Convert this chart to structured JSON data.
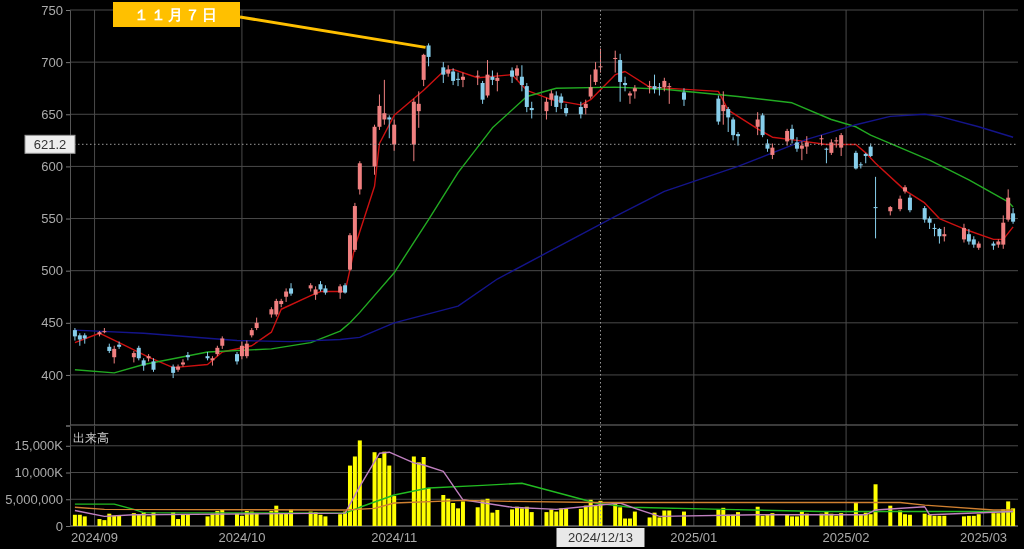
{
  "chart_data": [
    {
      "type": "candlestick",
      "x": [
        "2024-08-28",
        "2024-08-29",
        "2024-08-30",
        "2024-09-02",
        "2024-09-03",
        "2024-09-04",
        "2024-09-05",
        "2024-09-06",
        "2024-09-09",
        "2024-09-10",
        "2024-09-11",
        "2024-09-12",
        "2024-09-13",
        "2024-09-17",
        "2024-09-18",
        "2024-09-19",
        "2024-09-20",
        "2024-09-24",
        "2024-09-25",
        "2024-09-26",
        "2024-09-27",
        "2024-09-30",
        "2024-10-01",
        "2024-10-02",
        "2024-10-03",
        "2024-10-04",
        "2024-10-07",
        "2024-10-08",
        "2024-10-09",
        "2024-10-10",
        "2024-10-11",
        "2024-10-15",
        "2024-10-16",
        "2024-10-17",
        "2024-10-18",
        "2024-10-21",
        "2024-10-22",
        "2024-10-23",
        "2024-10-24",
        "2024-10-25",
        "2024-10-28",
        "2024-10-29",
        "2024-10-30",
        "2024-10-31",
        "2024-11-01",
        "2024-11-05",
        "2024-11-06",
        "2024-11-07",
        "2024-11-08",
        "2024-11-11",
        "2024-11-12",
        "2024-11-13",
        "2024-11-14",
        "2024-11-15",
        "2024-11-18",
        "2024-11-19",
        "2024-11-20",
        "2024-11-21",
        "2024-11-22",
        "2024-11-25",
        "2024-11-26",
        "2024-11-27",
        "2024-11-28",
        "2024-11-29",
        "2024-12-02",
        "2024-12-03",
        "2024-12-04",
        "2024-12-05",
        "2024-12-06",
        "2024-12-09",
        "2024-12-10",
        "2024-12-11",
        "2024-12-12",
        "2024-12-13",
        "2024-12-16",
        "2024-12-17",
        "2024-12-18",
        "2024-12-19",
        "2024-12-20",
        "2024-12-23",
        "2024-12-24",
        "2024-12-25",
        "2024-12-26",
        "2024-12-27",
        "2024-12-30",
        "2025-01-06",
        "2025-01-07",
        "2025-01-08",
        "2025-01-09",
        "2025-01-10",
        "2025-01-14",
        "2025-01-15",
        "2025-01-16",
        "2025-01-17",
        "2025-01-20",
        "2025-01-21",
        "2025-01-22",
        "2025-01-23",
        "2025-01-24",
        "2025-01-27",
        "2025-01-28",
        "2025-01-29",
        "2025-01-30",
        "2025-01-31",
        "2025-02-03",
        "2025-02-04",
        "2025-02-05",
        "2025-02-06",
        "2025-02-07",
        "2025-02-10",
        "2025-02-12",
        "2025-02-13",
        "2025-02-14",
        "2025-02-17",
        "2025-02-18",
        "2025-02-19",
        "2025-02-20",
        "2025-02-21",
        "2025-02-25",
        "2025-02-26",
        "2025-02-27",
        "2025-02-28",
        "2025-03-03",
        "2025-03-04",
        "2025-03-05",
        "2025-03-06",
        "2025-03-07"
      ],
      "ohlc": [
        [
          443,
          445,
          433,
          437
        ],
        [
          438,
          440,
          428,
          434
        ],
        [
          438,
          440,
          430,
          435
        ],
        [
          439,
          442,
          437,
          441
        ],
        [
          441,
          445,
          440,
          442
        ],
        [
          427,
          430,
          421,
          423
        ],
        [
          417,
          428,
          411,
          425
        ],
        [
          429,
          432,
          425,
          427
        ],
        [
          417,
          423,
          412,
          421
        ],
        [
          426,
          428,
          414,
          416
        ],
        [
          414,
          416,
          404,
          409
        ],
        [
          416,
          420,
          413,
          418
        ],
        [
          413,
          416,
          403,
          405
        ],
        [
          408,
          410,
          397,
          402
        ],
        [
          405,
          410,
          403,
          408
        ],
        [
          410,
          415,
          408,
          412
        ],
        [
          419,
          422,
          414,
          417
        ],
        [
          418,
          422,
          414,
          416
        ],
        [
          414,
          418,
          409,
          416
        ],
        [
          420,
          428,
          418,
          426
        ],
        [
          428,
          437,
          425,
          435
        ],
        [
          420,
          422,
          410,
          413
        ],
        [
          418,
          432,
          415,
          428
        ],
        [
          418,
          433,
          416,
          430
        ],
        [
          438,
          445,
          436,
          443
        ],
        [
          445,
          455,
          443,
          450
        ],
        [
          458,
          465,
          455,
          463
        ],
        [
          458,
          473,
          456,
          471
        ],
        [
          468,
          473,
          465,
          471
        ],
        [
          475,
          483,
          470,
          480
        ],
        [
          483,
          488,
          476,
          478
        ],
        [
          483,
          488,
          480,
          486
        ],
        [
          477,
          485,
          472,
          482
        ],
        [
          487,
          490,
          480,
          482
        ],
        [
          483,
          486,
          477,
          479
        ],
        [
          479,
          487,
          473,
          485
        ],
        [
          486,
          488,
          478,
          479
        ],
        [
          501,
          536,
          500,
          534
        ],
        [
          520,
          565,
          518,
          562
        ],
        [
          578,
          605,
          573,
          603
        ],
        [
          600,
          640,
          592,
          638
        ],
        [
          638,
          669,
          635,
          658
        ],
        [
          645,
          683,
          640,
          651
        ],
        [
          647,
          649,
          627,
          645
        ],
        [
          621,
          645,
          615,
          640
        ],
        [
          621,
          665,
          605,
          662
        ],
        [
          653,
          672,
          637,
          660
        ],
        [
          683,
          708,
          677,
          707
        ],
        [
          716,
          718,
          696,
          705
        ],
        [
          695,
          700,
          680,
          688
        ],
        [
          689,
          697,
          686,
          693
        ],
        [
          691,
          694,
          678,
          682
        ],
        [
          684,
          690,
          677,
          683
        ],
        [
          683,
          690,
          676,
          686
        ],
        [
          686,
          692,
          678,
          687
        ],
        [
          680,
          682,
          660,
          664
        ],
        [
          668,
          702,
          666,
          688
        ],
        [
          686,
          692,
          678,
          683
        ],
        [
          682,
          690,
          672,
          685
        ],
        [
          692,
          695,
          680,
          686
        ],
        [
          687,
          697,
          683,
          694
        ],
        [
          686,
          697,
          672,
          678
        ],
        [
          677,
          680,
          652,
          657
        ],
        [
          656,
          662,
          646,
          654
        ],
        [
          653,
          666,
          645,
          662
        ],
        [
          664,
          673,
          658,
          670
        ],
        [
          668,
          672,
          652,
          657
        ],
        [
          667,
          670,
          655,
          661
        ],
        [
          656,
          660,
          648,
          651
        ],
        [
          657,
          662,
          646,
          650
        ],
        [
          656,
          664,
          650,
          660
        ],
        [
          667,
          688,
          665,
          676
        ],
        [
          681,
          700,
          678,
          693
        ],
        [
          695,
          713,
          690,
          696
        ],
        [
          703,
          711,
          690,
          704
        ],
        [
          702,
          708,
          662,
          681
        ],
        [
          680,
          686,
          672,
          678
        ],
        [
          668,
          672,
          660,
          670
        ],
        [
          672,
          678,
          665,
          675
        ],
        [
          676,
          682,
          670,
          677
        ],
        [
          677,
          688,
          670,
          674
        ],
        [
          676,
          680,
          668,
          675
        ],
        [
          676,
          685,
          672,
          682
        ],
        [
          676,
          680,
          660,
          677
        ],
        [
          671,
          675,
          658,
          664
        ],
        [
          665,
          668,
          640,
          643
        ],
        [
          653,
          672,
          640,
          659
        ],
        [
          655,
          657,
          633,
          647
        ],
        [
          645,
          647,
          625,
          630
        ],
        [
          631,
          633,
          620,
          629
        ],
        [
          638,
          652,
          630,
          645
        ],
        [
          649,
          651,
          628,
          630
        ],
        [
          622,
          626,
          614,
          617
        ],
        [
          611,
          622,
          607,
          618
        ],
        [
          624,
          636,
          620,
          634
        ],
        [
          636,
          640,
          622,
          626
        ],
        [
          623,
          628,
          614,
          617
        ],
        [
          617,
          624,
          606,
          620
        ],
        [
          619,
          629,
          612,
          623
        ],
        [
          626,
          630,
          620,
          627
        ],
        [
          617,
          618,
          603,
          616
        ],
        [
          613,
          626,
          611,
          623
        ],
        [
          624,
          628,
          618,
          625
        ],
        [
          618,
          632,
          610,
          630
        ],
        [
          613,
          615,
          597,
          598
        ],
        [
          602,
          604,
          598,
          601
        ],
        [
          612,
          613,
          603,
          610
        ],
        [
          619,
          622,
          609,
          610
        ],
        [
          561,
          590,
          531,
          560
        ],
        [
          557,
          562,
          553,
          561
        ],
        [
          559,
          572,
          557,
          569
        ],
        [
          576,
          582,
          574,
          580
        ],
        [
          570,
          573,
          556,
          558
        ],
        [
          560,
          562,
          546,
          549
        ],
        [
          550,
          552,
          540,
          546
        ],
        [
          541,
          545,
          533,
          540
        ],
        [
          540,
          541,
          526,
          533
        ],
        [
          533,
          542,
          528,
          535
        ],
        [
          530,
          545,
          527,
          541
        ],
        [
          535,
          540,
          525,
          528
        ],
        [
          530,
          533,
          522,
          525
        ],
        [
          522,
          528,
          520,
          526
        ],
        [
          526,
          528,
          520,
          524
        ],
        [
          525,
          530,
          522,
          528
        ],
        [
          525,
          553,
          521,
          546
        ],
        [
          549,
          578,
          547,
          570
        ],
        [
          555,
          560,
          545,
          547
        ]
      ],
      "colors": [
        "#87ceeb",
        "#87ceeb",
        "#87ceeb",
        "#f08080",
        "#f08080",
        "#87ceeb",
        "#f08080",
        "#87ceeb",
        "#f08080",
        "#87ceeb",
        "#87ceeb",
        "#f08080",
        "#87ceeb",
        "#87ceeb",
        "#f08080",
        "#f08080",
        "#87ceeb",
        "#87ceeb",
        "#f08080",
        "#f08080",
        "#f08080",
        "#87ceeb",
        "#f08080",
        "#f08080",
        "#f08080",
        "#f08080",
        "#f08080",
        "#f08080",
        "#f08080",
        "#f08080",
        "#87ceeb",
        "#f08080",
        "#f08080",
        "#87ceeb",
        "#87ceeb",
        "#f08080",
        "#87ceeb",
        "#f08080",
        "#f08080",
        "#f08080",
        "#f08080",
        "#f08080",
        "#f08080",
        "#87ceeb",
        "#f08080",
        "#f08080",
        "#f08080",
        "#f08080",
        "#87ceeb",
        "#87ceeb",
        "#f08080",
        "#87ceeb",
        "#87ceeb",
        "#f08080",
        "#f08080",
        "#87ceeb",
        "#f08080",
        "#87ceeb",
        "#f08080",
        "#87ceeb",
        "#f08080",
        "#87ceeb",
        "#87ceeb",
        "#87ceeb",
        "#f08080",
        "#f08080",
        "#87ceeb",
        "#87ceeb",
        "#87ceeb",
        "#87ceeb",
        "#f08080",
        "#f08080",
        "#f08080",
        "#f08080",
        "#f08080",
        "#87ceeb",
        "#87ceeb",
        "#f08080",
        "#f08080",
        "#f08080",
        "#87ceeb",
        "#87ceeb",
        "#f08080",
        "#f08080",
        "#87ceeb",
        "#87ceeb",
        "#f08080",
        "#87ceeb",
        "#87ceeb",
        "#87ceeb",
        "#f08080",
        "#87ceeb",
        "#87ceeb",
        "#f08080",
        "#f08080",
        "#87ceeb",
        "#87ceeb",
        "#f08080",
        "#f08080",
        "#f08080",
        "#87ceeb",
        "#f08080",
        "#f08080",
        "#f08080",
        "#87ceeb",
        "#87ceeb",
        "#87ceeb",
        "#87ceeb",
        "#87ceeb",
        "#f08080",
        "#f08080",
        "#f08080",
        "#87ceeb",
        "#87ceeb",
        "#87ceeb",
        "#87ceeb",
        "#87ceeb",
        "#f08080",
        "#f08080",
        "#87ceeb",
        "#87ceeb",
        "#f08080",
        "#87ceeb",
        "#f08080",
        "#f08080",
        "#f08080",
        "#87ceeb"
      ],
      "series": [
        {
          "type": "line",
          "color": "#cc1111",
          "x": [
            "2024-08-28",
            "2024-09-02",
            "2024-09-06",
            "2024-09-12",
            "2024-09-17",
            "2024-09-24",
            "2024-09-27",
            "2024-10-03",
            "2024-10-07",
            "2024-10-09",
            "2024-10-15",
            "2024-10-17",
            "2024-10-22",
            "2024-10-23",
            "2024-10-24",
            "2024-10-28",
            "2024-10-29",
            "2024-11-01",
            "2024-11-07",
            "2024-11-11",
            "2024-11-13",
            "2024-11-18",
            "2024-11-25",
            "2024-11-28",
            "2024-12-03",
            "2024-12-09",
            "2024-12-11",
            "2024-12-16",
            "2024-12-18",
            "2024-12-23",
            "2025-01-06",
            "2025-01-08",
            "2025-01-14",
            "2025-01-17",
            "2025-01-22",
            "2025-01-28",
            "2025-02-03",
            "2025-02-05",
            "2025-02-07",
            "2025-02-13",
            "2025-02-17",
            "2025-02-20",
            "2025-02-25",
            "2025-03-03",
            "2025-03-05",
            "2025-03-07"
          ],
          "values": [
            431,
            440,
            431,
            417,
            407,
            410,
            422,
            428,
            441,
            463,
            476,
            480,
            480,
            501,
            523,
            581,
            622,
            649,
            673,
            691,
            693,
            685,
            688,
            673,
            664,
            659,
            664,
            688,
            691,
            676,
            672,
            654,
            636,
            628,
            625,
            621,
            621,
            613,
            603,
            577,
            565,
            550,
            540,
            530,
            530,
            542
          ]
        },
        {
          "type": "line",
          "color": "#22aa22",
          "x": [
            "2024-08-28",
            "2024-09-05",
            "2024-09-11",
            "2024-09-24",
            "2024-10-07",
            "2024-10-15",
            "2024-10-21",
            "2024-10-23",
            "2024-10-25",
            "2024-11-01",
            "2024-11-08",
            "2024-11-14",
            "2024-11-21",
            "2024-11-28",
            "2024-12-04",
            "2024-12-16",
            "2024-12-26",
            "2025-01-10",
            "2025-01-21",
            "2025-01-29",
            "2025-02-03",
            "2025-02-06",
            "2025-02-18",
            "2025-02-26",
            "2025-03-06",
            "2025-03-07"
          ],
          "values": [
            405,
            402,
            410,
            422,
            425,
            431,
            442,
            450,
            460,
            498,
            549,
            594,
            637,
            667,
            675,
            676,
            674,
            667,
            661,
            645,
            638,
            630,
            606,
            587,
            566,
            561
          ]
        },
        {
          "type": "line",
          "color": "#14148a",
          "x": [
            "2024-08-28",
            "2024-09-11",
            "2024-09-30",
            "2024-10-11",
            "2024-10-21",
            "2024-10-25",
            "2024-11-01",
            "2024-11-14",
            "2024-11-22",
            "2024-12-02",
            "2024-12-16",
            "2024-12-26",
            "2025-01-10",
            "2025-01-24",
            "2025-02-03",
            "2025-02-10",
            "2025-02-17",
            "2025-02-20",
            "2025-02-28",
            "2025-03-07"
          ],
          "values": [
            443,
            440,
            433,
            432,
            434,
            436,
            450,
            466,
            492,
            517,
            552,
            576,
            600,
            626,
            640,
            648,
            650,
            648,
            638,
            628
          ]
        }
      ],
      "ylim": [
        352,
        750
      ],
      "yticks": [
        400,
        450,
        500,
        550,
        600,
        650,
        700,
        750
      ],
      "xlim": [
        "2024-08-27",
        "2025-03-08"
      ],
      "xticks": [
        {
          "value": "2024-09-01",
          "label": null
        },
        {
          "value": "2024-10-01",
          "label": null
        },
        {
          "value": "2024-11-01",
          "label": null
        },
        {
          "value": "2024-12-01",
          "label": null
        },
        {
          "value": "2025-01-01",
          "label": null
        },
        {
          "value": "2025-02-01",
          "label": null
        },
        {
          "value": "2025-03-01",
          "label": null
        }
      ],
      "tick_labels": "y",
      "grid": true,
      "ref_lines": [
        {
          "axis": "y",
          "value": 621.2,
          "label": "621.2",
          "line_style": "dotted"
        },
        {
          "axis": "x",
          "value": "2024-12-13",
          "line_style": "dotted"
        }
      ],
      "annotations": [
        "１１月７日"
      ]
    },
    {
      "type": "bar",
      "ylabel": "出来高",
      "color": "#ffff00",
      "x": [
        "2024-08-28",
        "2024-08-29",
        "2024-08-30",
        "2024-09-02",
        "2024-09-03",
        "2024-09-04",
        "2024-09-05",
        "2024-09-06",
        "2024-09-09",
        "2024-09-10",
        "2024-09-11",
        "2024-09-12",
        "2024-09-13",
        "2024-09-17",
        "2024-09-18",
        "2024-09-19",
        "2024-09-20",
        "2024-09-24",
        "2024-09-25",
        "2024-09-26",
        "2024-09-27",
        "2024-09-30",
        "2024-10-01",
        "2024-10-02",
        "2024-10-03",
        "2024-10-04",
        "2024-10-07",
        "2024-10-08",
        "2024-10-09",
        "2024-10-10",
        "2024-10-11",
        "2024-10-15",
        "2024-10-16",
        "2024-10-17",
        "2024-10-18",
        "2024-10-21",
        "2024-10-22",
        "2024-10-23",
        "2024-10-24",
        "2024-10-25",
        "2024-10-28",
        "2024-10-29",
        "2024-10-30",
        "2024-10-31",
        "2024-11-01",
        "2024-11-05",
        "2024-11-06",
        "2024-11-07",
        "2024-11-08",
        "2024-11-11",
        "2024-11-12",
        "2024-11-13",
        "2024-11-14",
        "2024-11-15",
        "2024-11-18",
        "2024-11-19",
        "2024-11-20",
        "2024-11-21",
        "2024-11-22",
        "2024-11-25",
        "2024-11-26",
        "2024-11-27",
        "2024-11-28",
        "2024-11-29",
        "2024-12-02",
        "2024-12-03",
        "2024-12-04",
        "2024-12-05",
        "2024-12-06",
        "2024-12-09",
        "2024-12-10",
        "2024-12-11",
        "2024-12-12",
        "2024-12-13",
        "2024-12-16",
        "2024-12-17",
        "2024-12-18",
        "2024-12-19",
        "2024-12-20",
        "2024-12-23",
        "2024-12-24",
        "2024-12-25",
        "2024-12-26",
        "2024-12-27",
        "2024-12-30",
        "2025-01-06",
        "2025-01-07",
        "2025-01-08",
        "2025-01-09",
        "2025-01-10",
        "2025-01-14",
        "2025-01-15",
        "2025-01-16",
        "2025-01-17",
        "2025-01-20",
        "2025-01-21",
        "2025-01-22",
        "2025-01-23",
        "2025-01-24",
        "2025-01-27",
        "2025-01-28",
        "2025-01-29",
        "2025-01-30",
        "2025-01-31",
        "2025-02-03",
        "2025-02-04",
        "2025-02-05",
        "2025-02-06",
        "2025-02-07",
        "2025-02-10",
        "2025-02-12",
        "2025-02-13",
        "2025-02-14",
        "2025-02-17",
        "2025-02-18",
        "2025-02-19",
        "2025-02-20",
        "2025-02-21",
        "2025-02-25",
        "2025-02-26",
        "2025-02-27",
        "2025-02-28",
        "2025-03-03",
        "2025-03-04",
        "2025-03-05",
        "2025-03-06",
        "2025-03-07"
      ],
      "values": [
        2100000,
        2100000,
        1800000,
        1300000,
        1100000,
        2300000,
        1900000,
        1900000,
        2400000,
        2200000,
        2600000,
        1800000,
        2600000,
        2600000,
        1300000,
        2100000,
        2100000,
        1800000,
        2300000,
        2800000,
        3100000,
        2300000,
        1900000,
        2800000,
        2700000,
        2300000,
        2800000,
        3800000,
        2400000,
        2400000,
        3100000,
        2700000,
        2600000,
        2100000,
        1800000,
        2200000,
        2700000,
        11300000,
        13000000,
        16000000,
        13800000,
        12700000,
        13900000,
        11300000,
        5600000,
        13000000,
        11900000,
        12900000,
        7100000,
        5800000,
        5100000,
        4300000,
        3300000,
        4600000,
        3500000,
        4900000,
        5100000,
        2500000,
        3000000,
        3100000,
        3600000,
        3300000,
        3600000,
        2600000,
        2600000,
        3100000,
        2700000,
        3300000,
        3300000,
        3200000,
        3800000,
        4900000,
        3900000,
        4700000,
        4300000,
        3500000,
        1400000,
        1400000,
        2700000,
        1600000,
        2500000,
        1600000,
        2900000,
        2900000,
        2700000,
        3100000,
        3400000,
        2100000,
        2100000,
        2600000,
        3600000,
        1900000,
        2200000,
        2400000,
        2100000,
        1800000,
        1800000,
        2700000,
        2300000,
        2300000,
        2700000,
        2300000,
        1900000,
        2400000,
        4300000,
        2100000,
        2500000,
        2200000,
        7800000,
        3800000,
        2900000,
        2200000,
        2100000,
        2300000,
        2100000,
        1900000,
        1900000,
        1900000,
        1800000,
        1900000,
        1900000,
        2200000,
        2400000,
        2400000,
        3100000,
        4600000,
        3300000
      ],
      "series": [
        {
          "type": "line",
          "color": "#22bb22",
          "x": [
            "2024-08-28",
            "2024-09-05",
            "2024-09-09",
            "2024-09-11",
            "2024-10-22",
            "2024-10-25",
            "2024-11-01",
            "2024-11-08",
            "2024-11-19",
            "2024-11-27",
            "2024-12-06",
            "2024-12-12",
            "2024-12-19",
            "2025-01-07",
            "2025-01-27",
            "2025-03-07"
          ],
          "values": [
            4100000,
            4100000,
            3100000,
            2500000,
            2400000,
            3500000,
            5800000,
            7100000,
            7600000,
            8000000,
            5800000,
            4300000,
            3500000,
            3100000,
            2700000,
            2700000
          ]
        },
        {
          "type": "line",
          "color": "#c080c0",
          "x": [
            "2024-08-28",
            "2024-09-03",
            "2024-09-09",
            "2024-10-22",
            "2024-10-25",
            "2024-10-29",
            "2024-10-31",
            "2024-11-05",
            "2024-11-07",
            "2024-11-11",
            "2024-11-15",
            "2024-11-25",
            "2024-12-04",
            "2024-12-17",
            "2024-12-20",
            "2024-12-25",
            "2025-01-14",
            "2025-02-05",
            "2025-02-07",
            "2025-02-17",
            "2025-02-18",
            "2025-03-07"
          ],
          "values": [
            2900000,
            1800000,
            2100000,
            2400000,
            7400000,
            13600000,
            13800000,
            11800000,
            11400000,
            10200000,
            4900000,
            3500000,
            3100000,
            4300000,
            3300000,
            1800000,
            2100000,
            2100000,
            3000000,
            3600000,
            2100000,
            2700000
          ]
        },
        {
          "type": "line",
          "color": "#d08030",
          "x": [
            "2024-08-28",
            "2024-09-03",
            "2024-10-22",
            "2024-10-28",
            "2024-11-01",
            "2024-11-15",
            "2024-11-25",
            "2024-12-12",
            "2025-02-12",
            "2025-02-17",
            "2025-03-03",
            "2025-03-07"
          ],
          "values": [
            3500000,
            3100000,
            3000000,
            3300000,
            4300000,
            4800000,
            4600000,
            4400000,
            4400000,
            3900000,
            3000000,
            3000000
          ]
        }
      ],
      "ylim": [
        0,
        18700000
      ],
      "yticks": [
        0,
        {
          "value": 5000000,
          "label": "5,000,000"
        },
        {
          "value": 10000000,
          "label": "10,000K"
        },
        {
          "value": 15000000,
          "label": "15,000K"
        }
      ],
      "xlim": [
        "2024-08-27",
        "2025-03-08"
      ],
      "xticks": [
        {
          "value": "2024-09-01",
          "label": "2024/09"
        },
        {
          "value": "2024-10-01",
          "label": "2024/10"
        },
        {
          "value": "2024-11-01",
          "label": "2024/11"
        },
        {
          "value": "2024-12-01",
          "label": null
        },
        {
          "value": "2025-01-01",
          "label": "2025/01"
        },
        {
          "value": "2025-02-01",
          "label": "2025/02"
        },
        {
          "value": "2025-03-01",
          "label": "2025/03"
        }
      ],
      "grid": true,
      "ref_lines": [
        {
          "axis": "x",
          "value": "2024-12-13",
          "label": "2024/12/13",
          "line_style": "dotted"
        }
      ]
    }
  ]
}
